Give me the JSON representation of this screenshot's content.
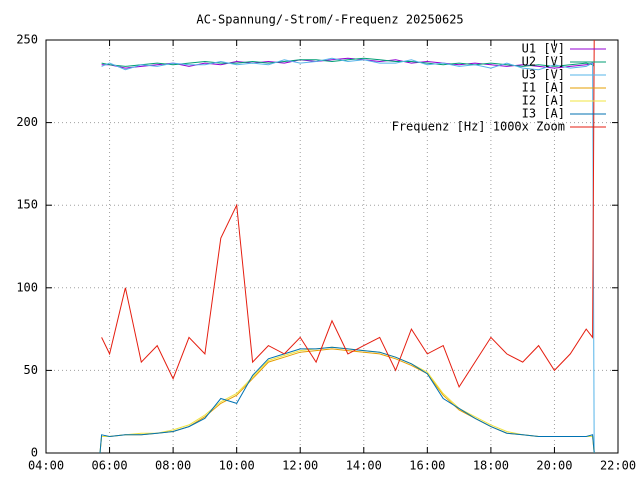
{
  "chart_data": {
    "type": "line",
    "title": "AC-Spannung/-Strom/-Frequenz 20250625",
    "x": [
      5.7,
      5.75,
      6,
      6.5,
      7,
      7.5,
      8,
      8.5,
      9,
      9.5,
      10,
      10.5,
      11,
      11.5,
      12,
      12.5,
      13,
      13.5,
      14,
      14.5,
      15,
      15.5,
      16,
      16.5,
      17,
      17.5,
      18,
      18.5,
      19,
      19.5,
      20,
      20.5,
      21,
      21.2,
      21.25
    ],
    "series": [
      {
        "name": "U1 [V]",
        "color": "#9400d3",
        "values": [
          null,
          235,
          235,
          233,
          234,
          235,
          236,
          234,
          236,
          235,
          237,
          236,
          237,
          236,
          238,
          237,
          238,
          239,
          238,
          237,
          238,
          236,
          237,
          236,
          235,
          236,
          235,
          234,
          235,
          234,
          233,
          234,
          235,
          236,
          235
        ]
      },
      {
        "name": "U2 [V]",
        "color": "#009e73",
        "values": [
          null,
          236,
          235,
          234,
          235,
          236,
          235,
          236,
          237,
          236,
          236,
          237,
          236,
          237,
          238,
          238,
          237,
          238,
          239,
          238,
          237,
          237,
          236,
          235,
          236,
          235,
          236,
          235,
          234,
          235,
          234,
          235,
          236,
          235,
          234
        ]
      },
      {
        "name": "U3 [V]",
        "color": "#56b4e9",
        "values": [
          null,
          234,
          236,
          232,
          235,
          234,
          236,
          235,
          235,
          237,
          235,
          236,
          235,
          238,
          236,
          237,
          239,
          237,
          238,
          236,
          236,
          238,
          235,
          236,
          234,
          235,
          233,
          236,
          233,
          232,
          235,
          233,
          234,
          236,
          0
        ]
      },
      {
        "name": "I1 [A]",
        "color": "#e69f00",
        "values": [
          0,
          10,
          10,
          11,
          11,
          12,
          13,
          16,
          22,
          30,
          35,
          45,
          55,
          58,
          61,
          62,
          63,
          62,
          61,
          60,
          57,
          53,
          48,
          35,
          26,
          21,
          16,
          12,
          11,
          10,
          10,
          10,
          10,
          10,
          0
        ]
      },
      {
        "name": "I2 [A]",
        "color": "#f0e442",
        "values": [
          0,
          10,
          10,
          11,
          12,
          12,
          14,
          17,
          23,
          31,
          36,
          46,
          56,
          59,
          62,
          63,
          64,
          63,
          62,
          61,
          58,
          54,
          49,
          36,
          27,
          22,
          17,
          13,
          11,
          10,
          10,
          10,
          10,
          10,
          0
        ]
      },
      {
        "name": "I3 [A]",
        "color": "#0072b2",
        "values": [
          0,
          11,
          10,
          11,
          11,
          12,
          13,
          16,
          21,
          33,
          30,
          47,
          57,
          60,
          63,
          63,
          64,
          63,
          62,
          61,
          58,
          54,
          48,
          33,
          27,
          21,
          16,
          12,
          11,
          10,
          10,
          10,
          10,
          11,
          0
        ]
      },
      {
        "name": "Frequenz [Hz] 1000x Zoom",
        "color": "#e51e10",
        "values": [
          null,
          70,
          60,
          100,
          55,
          65,
          45,
          70,
          60,
          130,
          150,
          55,
          65,
          60,
          70,
          55,
          80,
          60,
          65,
          70,
          50,
          75,
          60,
          65,
          40,
          55,
          70,
          60,
          55,
          65,
          50,
          60,
          75,
          70,
          250
        ]
      }
    ],
    "xlim": [
      4,
      22
    ],
    "xticks": [
      {
        "value": 4,
        "label": "04:00"
      },
      {
        "value": 6,
        "label": "06:00"
      },
      {
        "value": 8,
        "label": "08:00"
      },
      {
        "value": 10,
        "label": "10:00"
      },
      {
        "value": 12,
        "label": "12:00"
      },
      {
        "value": 14,
        "label": "14:00"
      },
      {
        "value": 16,
        "label": "16:00"
      },
      {
        "value": 18,
        "label": "18:00"
      },
      {
        "value": 20,
        "label": "20:00"
      },
      {
        "value": 22,
        "label": "22:00"
      }
    ],
    "ylim": [
      0,
      250
    ],
    "yticks": [
      0,
      50,
      100,
      150,
      200,
      250
    ],
    "grid": true,
    "legend": "top-right"
  }
}
